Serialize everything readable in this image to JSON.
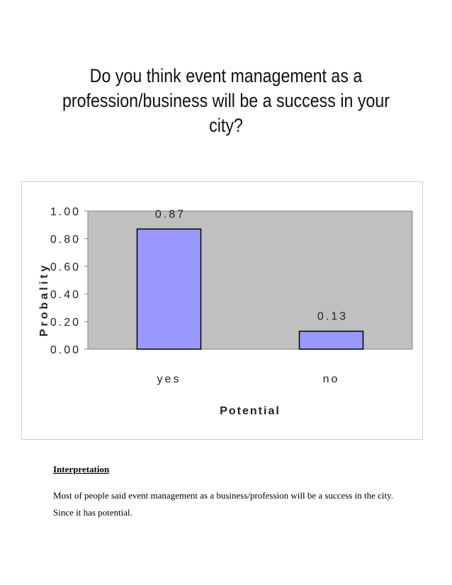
{
  "chart_data": {
    "type": "bar",
    "title": "Do you think event management as a profession/business will be a success in your city?",
    "categories": [
      "yes",
      "no"
    ],
    "values": [
      0.87,
      0.13
    ],
    "data_labels": [
      "0.87",
      "0.13"
    ],
    "xlabel": "Potential",
    "ylabel": "Probality",
    "ylim": [
      0,
      1
    ],
    "y_ticks": [
      "0.00",
      "0.20",
      "0.40",
      "0.60",
      "0.80",
      "1.00"
    ],
    "grid": false,
    "colors": {
      "bar": "#9999ff",
      "plot_bg": "#c0c0c0"
    }
  },
  "interpretation": {
    "heading": "Interpretation",
    "text": "Most of people said event management as a business/profession will be a success in the city. Since it has potential."
  }
}
